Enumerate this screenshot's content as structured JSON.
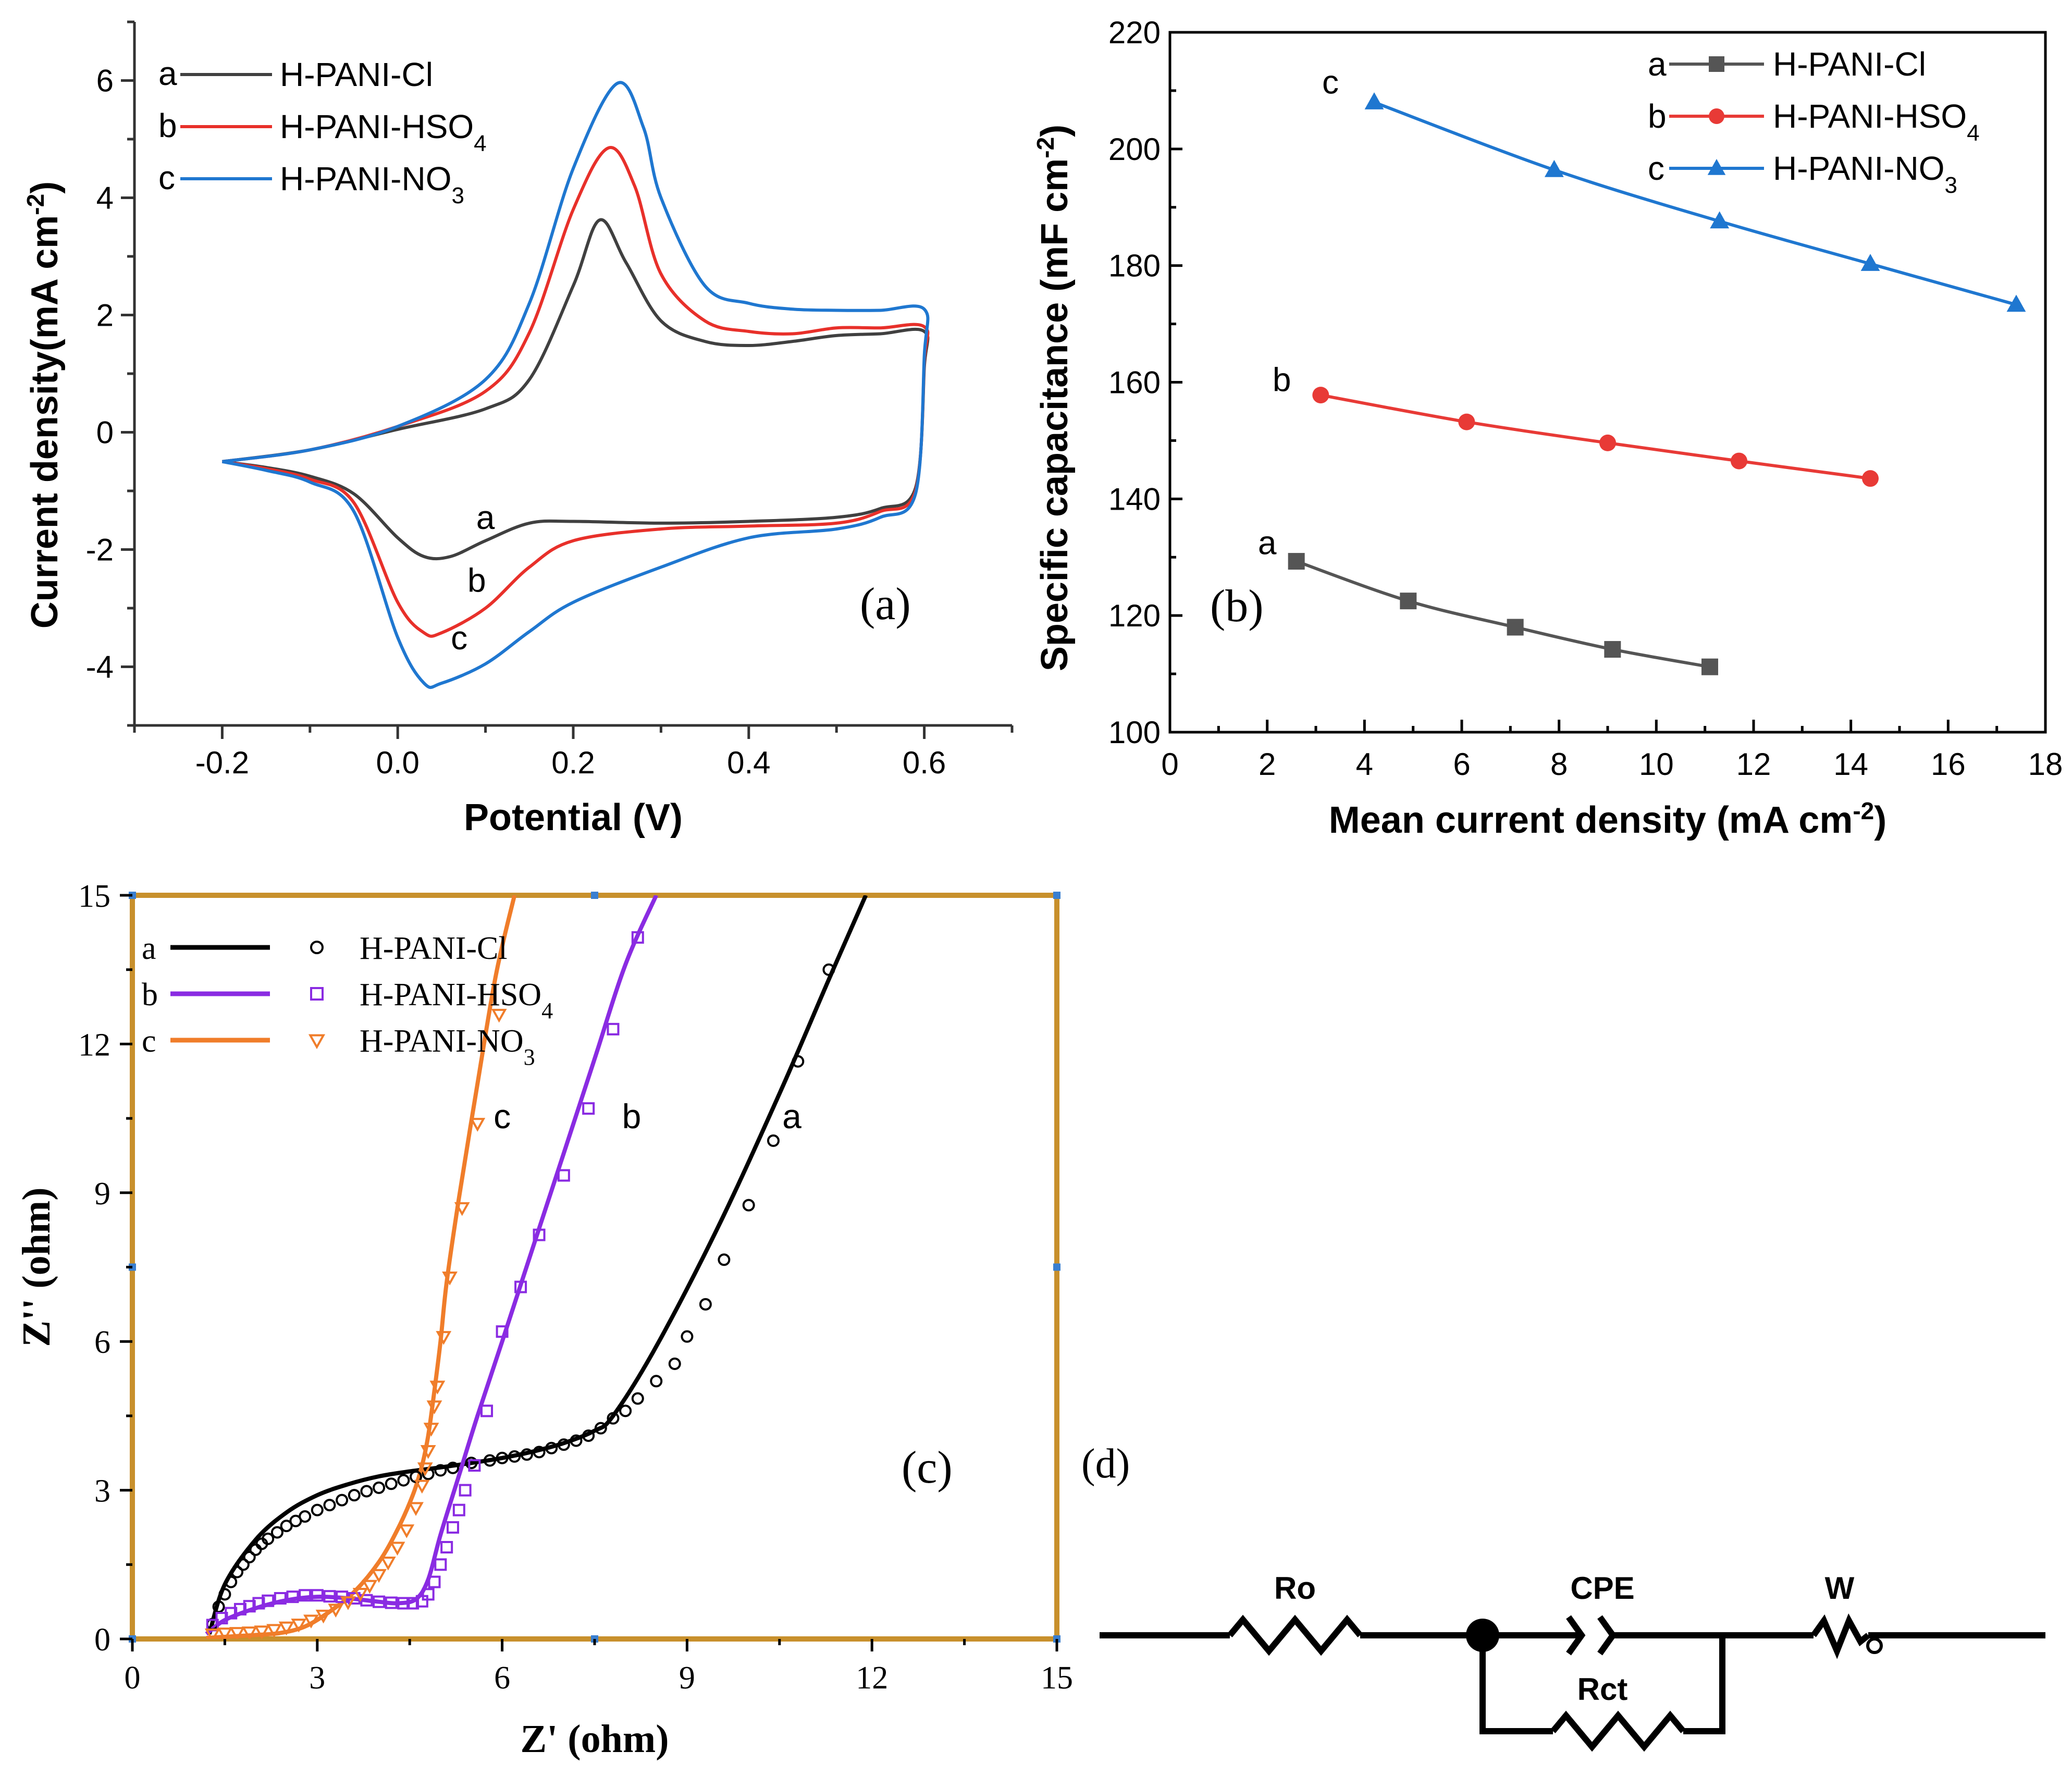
{
  "chart_data": [
    {
      "id": "a",
      "type": "line",
      "panel_label": "(a)",
      "xlabel": "Potential (V)",
      "ylabel": "Current density(mA cm",
      "ylabel_sup": "-2",
      "ylabel_close": ")",
      "xlim": [
        -0.3,
        0.7
      ],
      "ylim": [
        -5,
        7
      ],
      "xticks": [
        -0.2,
        0.0,
        0.2,
        0.4,
        0.6
      ],
      "xtick_labels": [
        "-0.2",
        "0.0",
        "0.2",
        "0.4",
        "0.6"
      ],
      "yticks": [
        -4,
        -2,
        0,
        2,
        4,
        6
      ],
      "ytick_labels": [
        "-4",
        "-2",
        "0",
        "2",
        "4",
        "6"
      ],
      "legend_position": "top-left",
      "series": [
        {
          "key": "a",
          "label": "a",
          "name": "H-PANI-Cl",
          "subscript": "",
          "color": "#404040",
          "x": [
            -0.2,
            -0.1,
            0.0,
            0.1,
            0.15,
            0.2,
            0.23,
            0.26,
            0.3,
            0.35,
            0.4,
            0.45,
            0.5,
            0.55,
            0.6,
            0.6,
            0.59,
            0.55,
            0.5,
            0.4,
            0.3,
            0.2,
            0.15,
            0.1,
            0.06,
            0.03,
            0.0,
            -0.05,
            -0.1,
            -0.15,
            -0.2
          ],
          "y": [
            -0.5,
            -0.3,
            0.05,
            0.4,
            0.9,
            2.5,
            3.62,
            2.9,
            1.9,
            1.55,
            1.48,
            1.55,
            1.65,
            1.68,
            1.72,
            1.1,
            -0.95,
            -1.3,
            -1.45,
            -1.52,
            -1.55,
            -1.52,
            -1.55,
            -1.85,
            -2.12,
            -2.12,
            -1.8,
            -1.05,
            -0.75,
            -0.6,
            -0.5
          ]
        },
        {
          "key": "b",
          "label": "b",
          "name": "H-PANI-HSO",
          "subscript": "4",
          "color": "#e8302a",
          "x": [
            -0.2,
            -0.1,
            0.0,
            0.1,
            0.15,
            0.2,
            0.24,
            0.27,
            0.3,
            0.35,
            0.4,
            0.45,
            0.5,
            0.55,
            0.6,
            0.6,
            0.59,
            0.55,
            0.5,
            0.4,
            0.3,
            0.2,
            0.15,
            0.1,
            0.05,
            0.03,
            0.0,
            -0.05,
            -0.1,
            -0.15,
            -0.2
          ],
          "y": [
            -0.5,
            -0.3,
            0.1,
            0.7,
            1.7,
            3.8,
            4.85,
            4.2,
            2.7,
            1.9,
            1.72,
            1.68,
            1.78,
            1.78,
            1.8,
            1.2,
            -1.0,
            -1.35,
            -1.55,
            -1.6,
            -1.65,
            -1.85,
            -2.3,
            -3.0,
            -3.42,
            -3.42,
            -2.9,
            -1.2,
            -0.8,
            -0.62,
            -0.5
          ]
        },
        {
          "key": "c",
          "label": "c",
          "name": "H-PANI-NO",
          "subscript": "3",
          "color": "#1f77d0",
          "x": [
            -0.2,
            -0.1,
            0.0,
            0.1,
            0.15,
            0.2,
            0.25,
            0.28,
            0.3,
            0.35,
            0.4,
            0.45,
            0.5,
            0.55,
            0.6,
            0.6,
            0.59,
            0.55,
            0.5,
            0.4,
            0.3,
            0.2,
            0.15,
            0.1,
            0.05,
            0.03,
            0.0,
            -0.05,
            -0.1,
            -0.15,
            -0.2
          ],
          "y": [
            -0.5,
            -0.3,
            0.1,
            0.9,
            2.2,
            4.5,
            5.95,
            5.2,
            4.0,
            2.5,
            2.2,
            2.1,
            2.08,
            2.08,
            2.1,
            1.3,
            -1.05,
            -1.45,
            -1.65,
            -1.8,
            -2.3,
            -2.9,
            -3.4,
            -3.95,
            -4.28,
            -4.28,
            -3.5,
            -1.35,
            -0.85,
            -0.65,
            -0.5
          ]
        }
      ],
      "annotations": [
        {
          "text": "a",
          "x": 0.1,
          "y": -1.65
        },
        {
          "text": "b",
          "x": 0.09,
          "y": -2.72
        },
        {
          "text": "c",
          "x": 0.07,
          "y": -3.7
        }
      ]
    },
    {
      "id": "b",
      "type": "line",
      "panel_label": "(b)",
      "xlabel": "Mean current density (mA cm",
      "xlabel_sup": "-2",
      "xlabel_close": ")",
      "ylabel": "Specific capacitance (mF cm",
      "ylabel_sup": "-2",
      "ylabel_close": ")",
      "xlim": [
        0,
        18
      ],
      "ylim": [
        100,
        220
      ],
      "xticks": [
        0,
        2,
        4,
        6,
        8,
        10,
        12,
        14,
        16,
        18
      ],
      "xtick_labels": [
        "0",
        "2",
        "4",
        "6",
        "8",
        "10",
        "12",
        "14",
        "16",
        "18"
      ],
      "yticks": [
        100,
        120,
        140,
        160,
        180,
        200,
        220
      ],
      "ytick_labels": [
        "100",
        "120",
        "140",
        "160",
        "180",
        "200",
        "220"
      ],
      "legend_position": "top-right",
      "series": [
        {
          "key": "a",
          "label": "a",
          "name": "H-PANI-Cl",
          "subscript": "",
          "color": "#555555",
          "marker": "square",
          "x": [
            2.6,
            4.9,
            7.1,
            9.1,
            11.1
          ],
          "y": [
            129.3,
            122.5,
            118.0,
            114.2,
            111.2
          ]
        },
        {
          "key": "b",
          "label": "b",
          "name": "H-PANI-HSO",
          "subscript": "4",
          "color": "#e83a36",
          "marker": "circle",
          "x": [
            3.1,
            6.1,
            9.0,
            11.7,
            14.4
          ],
          "y": [
            157.8,
            153.2,
            149.6,
            146.5,
            143.5
          ]
        },
        {
          "key": "c",
          "label": "c",
          "name": "H-PANI-NO",
          "subscript": "3",
          "color": "#1f77d0",
          "marker": "triangle",
          "x": [
            4.2,
            7.9,
            11.3,
            14.4,
            17.4
          ],
          "y": [
            208.0,
            196.4,
            187.6,
            180.3,
            173.3
          ]
        }
      ],
      "annotations": [
        {
          "text": "a",
          "x": 2.0,
          "y": 130.5
        },
        {
          "text": "b",
          "x": 2.3,
          "y": 158.5
        },
        {
          "text": "c",
          "x": 3.3,
          "y": 209.5
        }
      ]
    },
    {
      "id": "c",
      "type": "scatter",
      "panel_label": "(c)",
      "xlabel": "Z' (ohm)",
      "ylabel": "Z'' (ohm)",
      "xlim": [
        0,
        15
      ],
      "ylim": [
        0,
        15
      ],
      "xticks": [
        0,
        3,
        6,
        9,
        12,
        15
      ],
      "xtick_labels": [
        "0",
        "3",
        "6",
        "9",
        "12",
        "15"
      ],
      "yticks": [
        0,
        3,
        6,
        9,
        12,
        15
      ],
      "ytick_labels": [
        "0",
        "3",
        "6",
        "9",
        "12",
        "15"
      ],
      "legend_position": "top-left",
      "series": [
        {
          "key": "a",
          "label": "a",
          "name": "H-PANI-Cl",
          "subscript": "",
          "color": "#000000",
          "marker": "circle",
          "fit_x": [
            1.25,
            1.5,
            2.0,
            2.5,
            3.0,
            3.5,
            4.0,
            4.5,
            5.0,
            5.5,
            6.0,
            6.5,
            7.0,
            7.5,
            7.8,
            8.5,
            9.5,
            10.5,
            11.3,
            11.9
          ],
          "fit_y": [
            0.1,
            1.1,
            2.0,
            2.55,
            2.9,
            3.12,
            3.28,
            3.38,
            3.46,
            3.55,
            3.65,
            3.78,
            3.95,
            4.2,
            4.5,
            5.9,
            8.3,
            11.0,
            13.3,
            15.0
          ],
          "x": [
            1.3,
            1.4,
            1.5,
            1.6,
            1.7,
            1.8,
            1.9,
            2.0,
            2.1,
            2.2,
            2.35,
            2.5,
            2.65,
            2.8,
            3.0,
            3.2,
            3.4,
            3.6,
            3.8,
            4.0,
            4.2,
            4.4,
            4.6,
            4.8,
            5.0,
            5.2,
            5.5,
            5.8,
            6.0,
            6.2,
            6.4,
            6.6,
            6.8,
            7.0,
            7.2,
            7.4,
            7.6,
            7.8,
            8.0,
            8.2,
            8.5,
            8.8,
            9.0,
            9.3,
            9.6,
            10.0,
            10.4,
            10.8,
            11.3
          ],
          "y": [
            0.3,
            0.65,
            0.9,
            1.15,
            1.35,
            1.5,
            1.65,
            1.8,
            1.92,
            2.02,
            2.15,
            2.28,
            2.38,
            2.47,
            2.6,
            2.7,
            2.8,
            2.9,
            2.98,
            3.05,
            3.13,
            3.2,
            3.27,
            3.33,
            3.4,
            3.45,
            3.55,
            3.6,
            3.65,
            3.68,
            3.72,
            3.77,
            3.85,
            3.92,
            4.0,
            4.1,
            4.25,
            4.45,
            4.6,
            4.85,
            5.2,
            5.55,
            6.1,
            6.75,
            7.65,
            8.75,
            10.05,
            11.65,
            13.5
          ]
        },
        {
          "key": "b",
          "label": "b",
          "name": "H-PANI-HSO",
          "subscript": "4",
          "color": "#8a2be2",
          "marker": "square",
          "fit_x": [
            1.2,
            1.5,
            2.0,
            2.5,
            3.0,
            3.5,
            4.0,
            4.3,
            4.6,
            4.8,
            5.0,
            5.3,
            5.6,
            6.0,
            6.5,
            7.0,
            7.5,
            8.0,
            8.5
          ],
          "fit_y": [
            0.1,
            0.38,
            0.62,
            0.78,
            0.85,
            0.82,
            0.75,
            0.72,
            0.8,
            1.2,
            2.1,
            3.3,
            4.5,
            6.0,
            7.9,
            9.8,
            11.7,
            13.6,
            15.0
          ],
          "x": [
            1.3,
            1.45,
            1.6,
            1.75,
            1.9,
            2.05,
            2.2,
            2.4,
            2.6,
            2.8,
            3.0,
            3.2,
            3.4,
            3.6,
            3.8,
            4.0,
            4.2,
            4.4,
            4.55,
            4.7,
            4.8,
            4.9,
            5.0,
            5.1,
            5.2,
            5.3,
            5.4,
            5.55,
            5.75,
            6.0,
            6.3,
            6.6,
            7.0,
            7.4,
            7.8,
            8.2
          ],
          "y": [
            0.28,
            0.42,
            0.52,
            0.6,
            0.66,
            0.72,
            0.77,
            0.82,
            0.85,
            0.88,
            0.88,
            0.86,
            0.85,
            0.82,
            0.78,
            0.75,
            0.73,
            0.72,
            0.72,
            0.76,
            0.9,
            1.15,
            1.5,
            1.85,
            2.25,
            2.6,
            3.0,
            3.5,
            4.6,
            6.2,
            7.1,
            8.15,
            9.35,
            10.7,
            12.3,
            14.15
          ]
        },
        {
          "key": "c",
          "label": "c",
          "name": "H-PANI-NO",
          "subscript": "3",
          "color": "#f07d2a",
          "marker": "triangle-down",
          "fit_x": [
            1.2,
            1.6,
            2.0,
            2.4,
            2.8,
            3.2,
            3.6,
            4.0,
            4.3,
            4.55,
            4.7,
            4.8,
            4.9,
            5.0,
            5.1,
            5.3,
            5.6,
            5.9,
            6.2
          ],
          "fit_y": [
            0.02,
            0.05,
            0.08,
            0.12,
            0.25,
            0.55,
            0.95,
            1.55,
            2.2,
            2.9,
            3.5,
            4.1,
            5.0,
            6.0,
            7.2,
            8.9,
            11.2,
            13.4,
            15.0
          ],
          "x": [
            1.3,
            1.5,
            1.7,
            1.9,
            2.1,
            2.3,
            2.5,
            2.7,
            2.9,
            3.1,
            3.3,
            3.5,
            3.7,
            3.85,
            4.0,
            4.15,
            4.3,
            4.45,
            4.6,
            4.7,
            4.75,
            4.8,
            4.85,
            4.9,
            4.95,
            5.05,
            5.15,
            5.35,
            5.6,
            5.95
          ],
          "y": [
            0.1,
            0.12,
            0.13,
            0.14,
            0.16,
            0.19,
            0.24,
            0.3,
            0.38,
            0.48,
            0.6,
            0.75,
            0.92,
            1.08,
            1.3,
            1.55,
            1.85,
            2.2,
            2.65,
            3.1,
            3.45,
            3.8,
            4.25,
            4.7,
            5.1,
            6.1,
            7.3,
            8.7,
            10.4,
            12.6
          ]
        }
      ],
      "annotations": [
        {
          "text": "a",
          "x": 10.7,
          "y": 10.3
        },
        {
          "text": "b",
          "x": 8.1,
          "y": 10.3
        },
        {
          "text": "c",
          "x": 6.0,
          "y": 10.3
        }
      ]
    }
  ],
  "panel_d": {
    "panel_label": "(d)",
    "ro_label": "Ro",
    "cpe_label": "CPE",
    "w_label": "W",
    "w_subscript": "o",
    "rct_label": "Rct"
  }
}
